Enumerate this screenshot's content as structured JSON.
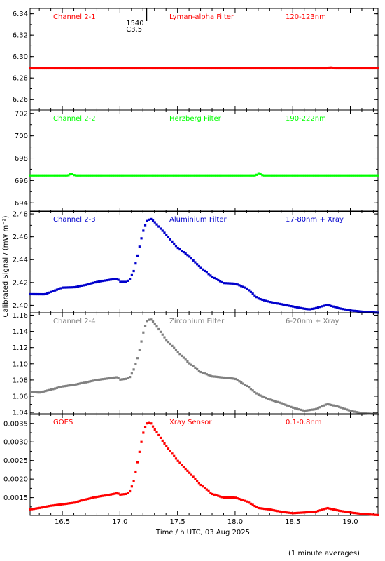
{
  "x_axis": {
    "label": "Time / h UTC, 03 Aug 2025",
    "range": [
      16.22,
      19.24
    ],
    "ticks": [
      16.5,
      17.0,
      17.5,
      18.0,
      18.5,
      19.0
    ],
    "tick_labels": [
      "16.5",
      "17.0",
      "17.5",
      "18.0",
      "18.5",
      "19.0"
    ]
  },
  "y_axis_label": "Calibrated Signal / (mW m⁻²)",
  "footer_note": "(1 minute averages)",
  "marker": {
    "label_line1": "1540",
    "label_line2": "C3.5",
    "x": 17.23
  },
  "chart_data": [
    {
      "type": "scatter",
      "channel": "Channel 2-1",
      "filter": "Lyman-alpha Filter",
      "band": "120-123nm",
      "color": "#ff0000",
      "ylim": [
        6.25,
        6.345
      ],
      "yticks": [
        6.26,
        6.28,
        6.3,
        6.32,
        6.34
      ],
      "ytick_labels": [
        "6.26",
        "6.28",
        "6.30",
        "6.32",
        "6.34"
      ],
      "curve": [
        [
          16.22,
          6.289
        ],
        [
          18.8,
          6.289
        ],
        [
          18.83,
          6.29
        ],
        [
          18.86,
          6.289
        ],
        [
          19.24,
          6.289
        ]
      ]
    },
    {
      "type": "scatter",
      "channel": "Channel 2-2",
      "filter": "Herzberg Filter",
      "band": "190-222nm",
      "color": "#00ff00",
      "ylim": [
        693.2,
        702.3
      ],
      "yticks": [
        694,
        696,
        698,
        700,
        702
      ],
      "ytick_labels": [
        "694",
        "696",
        "698",
        "700",
        "702"
      ],
      "curve": [
        [
          16.22,
          696.45
        ],
        [
          16.55,
          696.45
        ],
        [
          16.58,
          696.6
        ],
        [
          16.61,
          696.45
        ],
        [
          18.18,
          696.45
        ],
        [
          18.21,
          696.7
        ],
        [
          18.24,
          696.45
        ],
        [
          19.24,
          696.45
        ]
      ]
    },
    {
      "type": "scatter",
      "channel": "Channel 2-3",
      "filter": "Aluminium Filter",
      "band": "17-80nm + Xray",
      "color": "#0000cc",
      "ylim": [
        2.3935,
        2.4825
      ],
      "yticks": [
        2.4,
        2.42,
        2.44,
        2.46,
        2.48
      ],
      "ytick_labels": [
        "2.40",
        "2.42",
        "2.44",
        "2.46",
        "2.48"
      ],
      "curve": [
        [
          16.22,
          2.4098
        ],
        [
          16.35,
          2.4097
        ],
        [
          16.5,
          2.4155
        ],
        [
          16.6,
          2.4158
        ],
        [
          16.7,
          2.4178
        ],
        [
          16.8,
          2.4205
        ],
        [
          16.9,
          2.4222
        ],
        [
          16.98,
          2.4232
        ],
        [
          17.0,
          2.4205
        ],
        [
          17.06,
          2.4205
        ],
        [
          17.09,
          2.4235
        ],
        [
          17.12,
          2.43
        ],
        [
          17.15,
          2.442
        ],
        [
          17.18,
          2.456
        ],
        [
          17.21,
          2.468
        ],
        [
          17.24,
          2.4745
        ],
        [
          17.27,
          2.4755
        ],
        [
          17.3,
          2.473
        ],
        [
          17.4,
          2.462
        ],
        [
          17.5,
          2.4505
        ],
        [
          17.6,
          2.443
        ],
        [
          17.7,
          2.433
        ],
        [
          17.8,
          2.425
        ],
        [
          17.9,
          2.4195
        ],
        [
          18.0,
          2.419
        ],
        [
          18.1,
          2.415
        ],
        [
          18.2,
          2.406
        ],
        [
          18.3,
          2.403
        ],
        [
          18.45,
          2.4
        ],
        [
          18.6,
          2.397
        ],
        [
          18.65,
          2.3965
        ],
        [
          18.7,
          2.3975
        ],
        [
          18.8,
          2.4005
        ],
        [
          18.9,
          2.3975
        ],
        [
          19.0,
          2.3955
        ],
        [
          19.1,
          2.3945
        ],
        [
          19.24,
          2.3935
        ]
      ]
    },
    {
      "type": "scatter",
      "channel": "Channel 2-4",
      "filter": "Zirconium Filter",
      "band": "6-20nm + Xray",
      "color": "#808080",
      "ylim": [
        1.0375,
        1.163
      ],
      "yticks": [
        1.04,
        1.06,
        1.08,
        1.1,
        1.12,
        1.14,
        1.16
      ],
      "ytick_labels": [
        "1.04",
        "1.06",
        "1.08",
        "1.10",
        "1.12",
        "1.14",
        "1.16"
      ],
      "curve": [
        [
          16.22,
          1.0655
        ],
        [
          16.3,
          1.0645
        ],
        [
          16.4,
          1.068
        ],
        [
          16.5,
          1.072
        ],
        [
          16.6,
          1.074
        ],
        [
          16.7,
          1.077
        ],
        [
          16.8,
          1.08
        ],
        [
          16.9,
          1.082
        ],
        [
          16.98,
          1.0835
        ],
        [
          17.0,
          1.0805
        ],
        [
          17.06,
          1.0815
        ],
        [
          17.09,
          1.084
        ],
        [
          17.12,
          1.093
        ],
        [
          17.15,
          1.105
        ],
        [
          17.18,
          1.123
        ],
        [
          17.21,
          1.143
        ],
        [
          17.24,
          1.154
        ],
        [
          17.27,
          1.1545
        ],
        [
          17.3,
          1.15
        ],
        [
          17.4,
          1.13
        ],
        [
          17.5,
          1.115
        ],
        [
          17.6,
          1.101
        ],
        [
          17.7,
          1.09
        ],
        [
          17.8,
          1.0845
        ],
        [
          17.9,
          1.083
        ],
        [
          18.0,
          1.0815
        ],
        [
          18.1,
          1.073
        ],
        [
          18.2,
          1.062
        ],
        [
          18.3,
          1.056
        ],
        [
          18.4,
          1.0515
        ],
        [
          18.5,
          1.046
        ],
        [
          18.6,
          1.042
        ],
        [
          18.7,
          1.044
        ],
        [
          18.8,
          1.0505
        ],
        [
          18.9,
          1.047
        ],
        [
          19.0,
          1.042
        ],
        [
          19.1,
          1.039
        ],
        [
          19.24,
          1.0378
        ]
      ]
    },
    {
      "type": "scatter",
      "channel": "GOES",
      "filter": "Xray Sensor",
      "band": "0.1-0.8nm",
      "color": "#ff0000",
      "ylim": [
        0.00102,
        0.00376
      ],
      "yticks": [
        0.0015,
        0.002,
        0.0025,
        0.003,
        0.0035
      ],
      "ytick_labels": [
        "0.0015",
        "0.0020",
        "0.0025",
        "0.0030",
        "0.0035"
      ],
      "curve": [
        [
          16.22,
          0.00118
        ],
        [
          16.3,
          0.00122
        ],
        [
          16.4,
          0.00128
        ],
        [
          16.5,
          0.00132
        ],
        [
          16.6,
          0.00136
        ],
        [
          16.7,
          0.00145
        ],
        [
          16.8,
          0.00152
        ],
        [
          16.9,
          0.00157
        ],
        [
          16.98,
          0.00162
        ],
        [
          17.0,
          0.00158
        ],
        [
          17.06,
          0.0016
        ],
        [
          17.09,
          0.00168
        ],
        [
          17.12,
          0.00195
        ],
        [
          17.15,
          0.0024
        ],
        [
          17.18,
          0.0029
        ],
        [
          17.21,
          0.00335
        ],
        [
          17.24,
          0.00352
        ],
        [
          17.27,
          0.0035
        ],
        [
          17.3,
          0.00335
        ],
        [
          17.4,
          0.0029
        ],
        [
          17.5,
          0.0025
        ],
        [
          17.6,
          0.00218
        ],
        [
          17.7,
          0.00185
        ],
        [
          17.8,
          0.0016
        ],
        [
          17.9,
          0.0015
        ],
        [
          18.0,
          0.0015
        ],
        [
          18.1,
          0.0014
        ],
        [
          18.2,
          0.00122
        ],
        [
          18.3,
          0.00118
        ],
        [
          18.4,
          0.00112
        ],
        [
          18.5,
          0.00108
        ],
        [
          18.6,
          0.0011
        ],
        [
          18.7,
          0.00112
        ],
        [
          18.8,
          0.00122
        ],
        [
          18.9,
          0.00115
        ],
        [
          19.0,
          0.0011
        ],
        [
          19.1,
          0.00106
        ],
        [
          19.24,
          0.00103
        ]
      ]
    }
  ]
}
